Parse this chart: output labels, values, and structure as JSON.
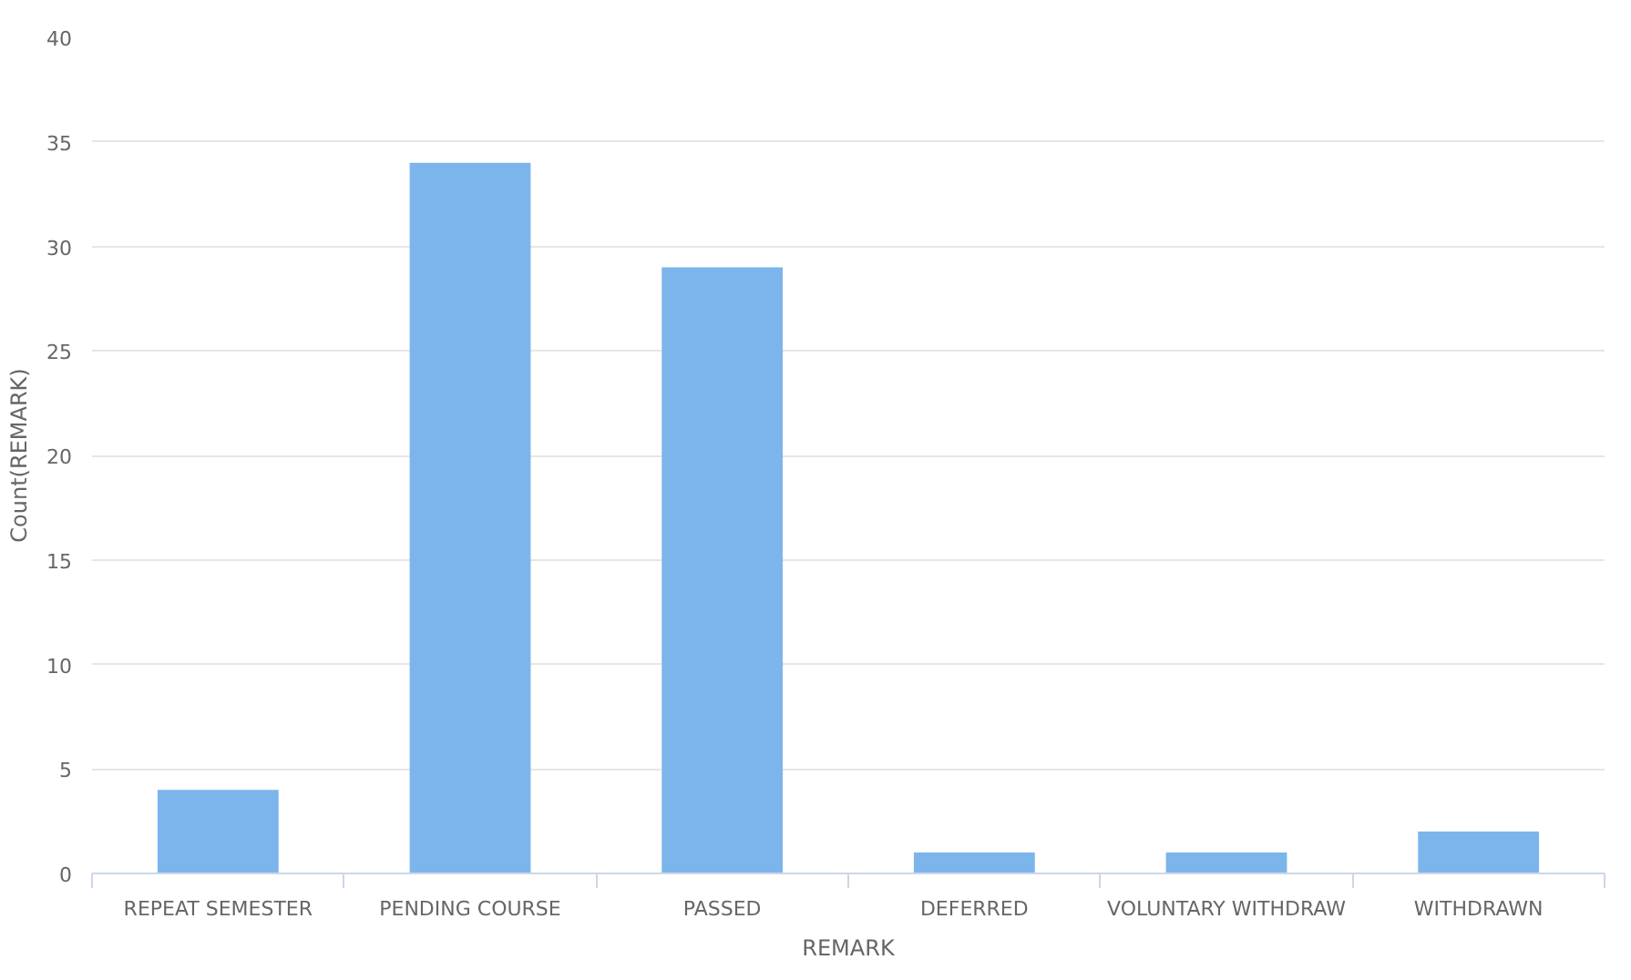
{
  "chart_data": {
    "type": "bar",
    "xlabel": "REMARK",
    "ylabel": "Count(REMARK)",
    "categories": [
      "REPEAT SEMESTER",
      "PENDING COURSE",
      "PASSED",
      "DEFERRED",
      "VOLUNTARY WITHDRAW",
      "WITHDRAWN"
    ],
    "values": [
      4,
      34,
      29,
      1,
      1,
      2
    ],
    "color": "#7cb5ec",
    "ylim": [
      0,
      40
    ],
    "yticks": [
      0,
      5,
      10,
      15,
      20,
      25,
      30,
      35,
      40
    ],
    "grid": "y"
  }
}
